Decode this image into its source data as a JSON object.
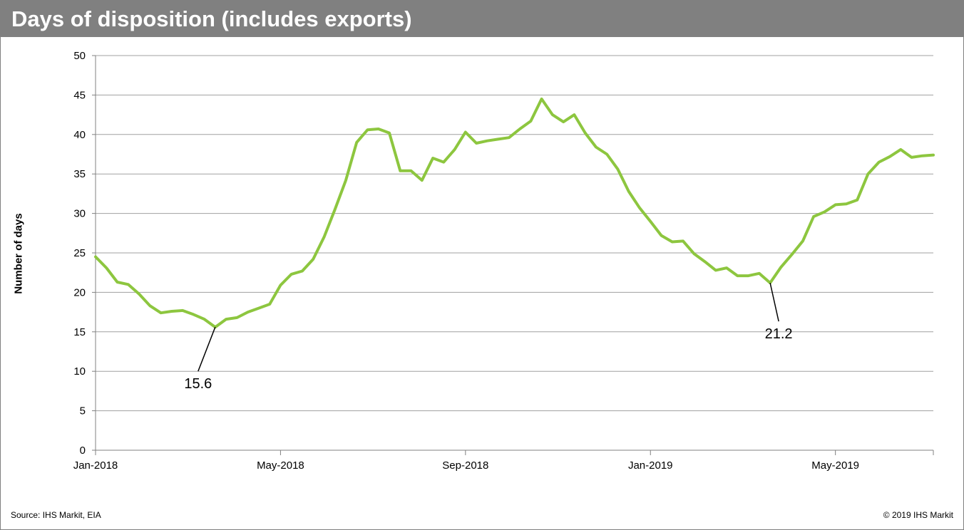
{
  "header": {
    "title": "Days of disposition (includes exports)"
  },
  "footer": {
    "source": "Source: IHS Markit, EIA",
    "copyright": "© 2019 IHS Markit"
  },
  "colors": {
    "line": "#8DC63F",
    "title_bar": "#808080",
    "grid": "#A0A0A0"
  },
  "chart_data": {
    "type": "line",
    "title": "Days of disposition (includes exports)",
    "xlabel": "",
    "ylabel": "Number of days",
    "ylim": [
      0,
      50
    ],
    "yticks": [
      0,
      5,
      10,
      15,
      20,
      25,
      30,
      35,
      40,
      45,
      50
    ],
    "xlim": [
      "2018-01-05",
      "2019-06-28"
    ],
    "xticks": [
      {
        "date": "2018-01-05",
        "label": "Jan-2018"
      },
      {
        "date": "2018-05-04",
        "label": "May-2018"
      },
      {
        "date": "2018-08-31",
        "label": "Sep-2018"
      },
      {
        "date": "2018-12-28",
        "label": "Jan-2019"
      },
      {
        "date": "2019-04-26",
        "label": "May-2019"
      }
    ],
    "grid": true,
    "series": [
      {
        "x": [
          "2018-01-05",
          "2018-01-12",
          "2018-01-19",
          "2018-01-26",
          "2018-02-02",
          "2018-02-09",
          "2018-02-16",
          "2018-02-23",
          "2018-03-02",
          "2018-03-09",
          "2018-03-16",
          "2018-03-23",
          "2018-03-30",
          "2018-04-06",
          "2018-04-13",
          "2018-04-20",
          "2018-04-27",
          "2018-05-04",
          "2018-05-11",
          "2018-05-18",
          "2018-05-25",
          "2018-06-01",
          "2018-06-08",
          "2018-06-15",
          "2018-06-22",
          "2018-06-29",
          "2018-07-06",
          "2018-07-13",
          "2018-07-20",
          "2018-07-27",
          "2018-08-03",
          "2018-08-10",
          "2018-08-17",
          "2018-08-24",
          "2018-08-31",
          "2018-09-07",
          "2018-09-14",
          "2018-09-21",
          "2018-09-28",
          "2018-10-05",
          "2018-10-12",
          "2018-10-19",
          "2018-10-26",
          "2018-11-02",
          "2018-11-09",
          "2018-11-16",
          "2018-11-23",
          "2018-11-30",
          "2018-12-07",
          "2018-12-14",
          "2018-12-21",
          "2018-12-28",
          "2019-01-04",
          "2019-01-11",
          "2019-01-18",
          "2019-01-25",
          "2019-02-01",
          "2019-02-08",
          "2019-02-15",
          "2019-02-22",
          "2019-03-01",
          "2019-03-08",
          "2019-03-15",
          "2019-03-22",
          "2019-03-29",
          "2019-04-05",
          "2019-04-12",
          "2019-04-19",
          "2019-04-26",
          "2019-05-03",
          "2019-05-10",
          "2019-05-17",
          "2019-05-24",
          "2019-05-31",
          "2019-06-07",
          "2019-06-14",
          "2019-06-21",
          "2019-06-28"
        ],
        "values": [
          24.5,
          23.1,
          21.3,
          21.0,
          19.8,
          18.3,
          17.4,
          17.6,
          17.7,
          17.2,
          16.6,
          15.6,
          16.6,
          16.8,
          17.5,
          18.0,
          18.5,
          20.9,
          22.3,
          22.7,
          24.2,
          27.0,
          30.5,
          34.2,
          39.0,
          40.6,
          40.7,
          40.2,
          35.4,
          35.4,
          34.2,
          37.0,
          36.5,
          38.1,
          40.3,
          38.9,
          39.2,
          39.4,
          39.6,
          40.7,
          41.7,
          44.5,
          42.5,
          41.6,
          42.5,
          40.2,
          38.4,
          37.5,
          35.6,
          32.8,
          30.7,
          29.0,
          27.2,
          26.4,
          26.5,
          24.9,
          23.9,
          22.8,
          23.1,
          22.1,
          22.1,
          22.4,
          21.2,
          23.2,
          24.8,
          26.5,
          29.6,
          30.2,
          31.1,
          31.2,
          31.7,
          35.0,
          36.5,
          37.2,
          38.1,
          37.1,
          37.3,
          37.4
        ]
      }
    ],
    "annotations": [
      {
        "date": "2018-03-23",
        "value": 15.6,
        "label": "15.6"
      },
      {
        "date": "2019-03-15",
        "value": 21.2,
        "label": "21.2"
      }
    ]
  }
}
